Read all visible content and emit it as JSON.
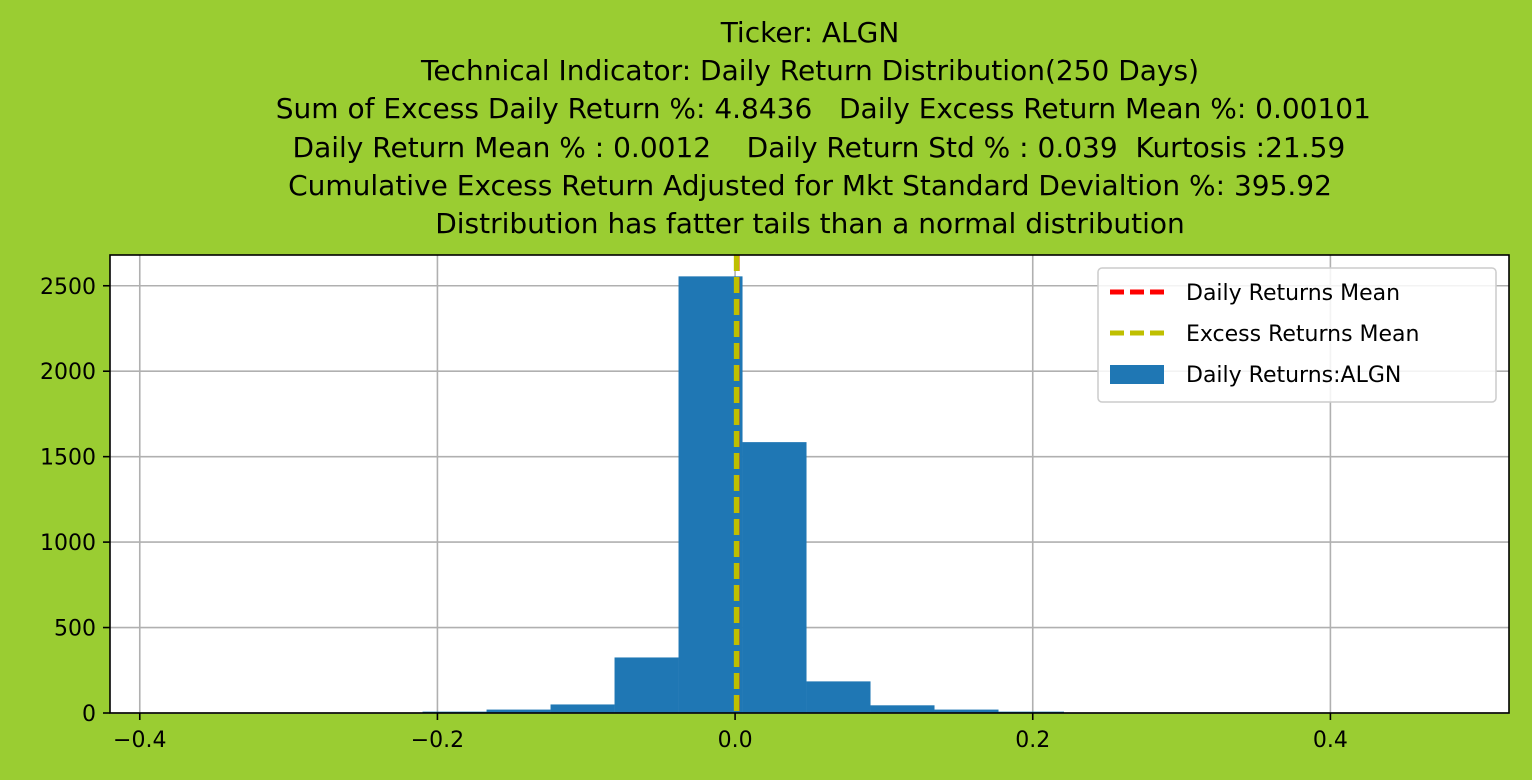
{
  "figure": {
    "background": "#9ACD32"
  },
  "chart_data": {
    "type": "bar",
    "title_lines": [
      "Ticker: ALGN",
      "Technical Indicator: Daily Return Distribution(250 Days)",
      "   Sum of Excess Daily Return %: 4.8436   Daily Excess Return Mean %: 0.00101",
      "  Daily Return Mean % : 0.0012    Daily Return Std % : 0.039  Kurtosis :21.59",
      "Cumulative Excess Return Adjusted for Mkt Standard Devialtion %: 395.92",
      "Distribution has fatter tails than a normal distribution"
    ],
    "xlim": [
      -0.42,
      0.52
    ],
    "ylim": [
      0,
      2680
    ],
    "grid": true,
    "x_ticks": [
      -0.4,
      -0.2,
      0.0,
      0.2,
      0.4
    ],
    "x_tick_labels": [
      "−0.4",
      "−0.2",
      "0.0",
      "0.2",
      "0.4"
    ],
    "y_ticks": [
      0,
      500,
      1000,
      1500,
      2000,
      2500
    ],
    "y_tick_labels": [
      "0",
      "500",
      "1000",
      "1500",
      "2000",
      "2500"
    ],
    "histogram": {
      "name": "Daily Returns:ALGN",
      "color": "#1F77B4",
      "bin_edges": [
        -0.21,
        -0.167,
        -0.124,
        -0.081,
        -0.038,
        0.005,
        0.048,
        0.091,
        0.134,
        0.177,
        0.221
      ],
      "counts": [
        8,
        20,
        50,
        325,
        2555,
        1585,
        185,
        45,
        20,
        8
      ]
    },
    "vlines": [
      {
        "name": "Daily Returns Mean",
        "x": 0.0012,
        "color": "#FF0000"
      },
      {
        "name": "Excess Returns Mean",
        "x": 0.00101,
        "color": "#BFBF00"
      }
    ],
    "legend": {
      "position": "upper right",
      "entries": [
        {
          "label": "Daily Returns Mean",
          "kind": "dashed-line",
          "color": "#FF0000"
        },
        {
          "label": "Excess Returns Mean",
          "kind": "dashed-line",
          "color": "#BFBF00"
        },
        {
          "label": "Daily Returns:ALGN",
          "kind": "patch",
          "color": "#1F77B4"
        }
      ]
    }
  }
}
